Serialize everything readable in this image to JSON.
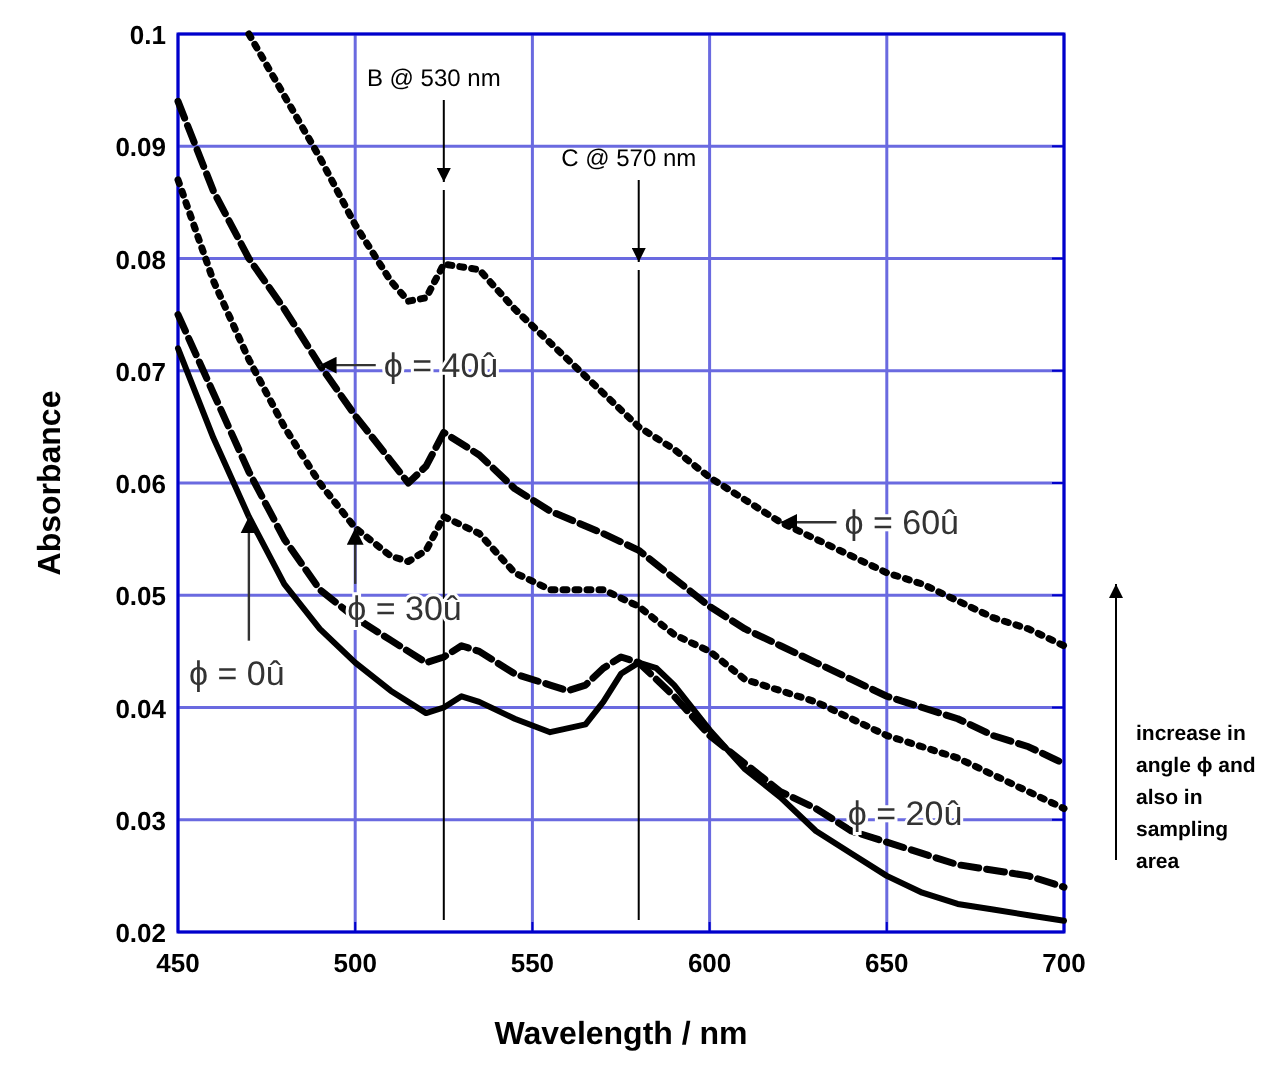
{
  "chart_data": {
    "type": "line",
    "xlabel": "Wavelength / nm",
    "ylabel": "Absorbance",
    "xlim": [
      450,
      700
    ],
    "xticks": [
      450,
      500,
      550,
      600,
      650,
      700
    ],
    "ylim": [
      0.02,
      0.1
    ],
    "yticks": [
      0.02,
      0.03,
      0.04,
      0.05,
      0.06,
      0.07,
      0.08,
      0.09,
      0.1
    ],
    "grid": true,
    "series": [
      {
        "color": "#000000",
        "line_style": "solid",
        "x": [
          450,
          460,
          470,
          480,
          490,
          500,
          510,
          520,
          525,
          530,
          535,
          545,
          555,
          565,
          570,
          575,
          580,
          585,
          590,
          600,
          610,
          620,
          630,
          640,
          650,
          660,
          670,
          680,
          690,
          700
        ],
        "values": [
          0.072,
          0.064,
          0.057,
          0.051,
          0.047,
          0.044,
          0.0415,
          0.0395,
          0.04,
          0.041,
          0.0405,
          0.039,
          0.0378,
          0.0385,
          0.0405,
          0.043,
          0.044,
          0.0435,
          0.042,
          0.038,
          0.0345,
          0.032,
          0.029,
          0.027,
          0.025,
          0.0235,
          0.0225,
          0.022,
          0.0215,
          0.021
        ]
      },
      {
        "color": "#000000",
        "line_style": "dashed",
        "x": [
          450,
          460,
          470,
          480,
          490,
          500,
          510,
          520,
          525,
          530,
          535,
          545,
          555,
          560,
          565,
          570,
          575,
          580,
          590,
          600,
          610,
          620,
          630,
          640,
          650,
          660,
          670,
          680,
          690,
          700
        ],
        "values": [
          0.075,
          0.068,
          0.061,
          0.055,
          0.0505,
          0.048,
          0.046,
          0.044,
          0.0445,
          0.0455,
          0.045,
          0.043,
          0.042,
          0.0415,
          0.042,
          0.0435,
          0.0445,
          0.044,
          0.041,
          0.0375,
          0.035,
          0.0325,
          0.031,
          0.029,
          0.028,
          0.027,
          0.026,
          0.0255,
          0.025,
          0.024
        ]
      },
      {
        "color": "#000000",
        "line_style": "dotted",
        "x": [
          450,
          460,
          470,
          480,
          490,
          500,
          510,
          515,
          520,
          525,
          535,
          545,
          555,
          565,
          570,
          580,
          590,
          600,
          610,
          620,
          630,
          640,
          650,
          660,
          670,
          680,
          690,
          700
        ],
        "values": [
          0.087,
          0.078,
          0.071,
          0.065,
          0.06,
          0.056,
          0.0535,
          0.053,
          0.054,
          0.057,
          0.0555,
          0.052,
          0.0505,
          0.0505,
          0.0505,
          0.049,
          0.0465,
          0.045,
          0.0425,
          0.0415,
          0.0405,
          0.039,
          0.0375,
          0.0365,
          0.0355,
          0.034,
          0.0325,
          0.031
        ]
      },
      {
        "color": "#000000",
        "line_style": "dashed",
        "x": [
          450,
          460,
          470,
          480,
          490,
          500,
          510,
          515,
          520,
          525,
          535,
          545,
          555,
          570,
          580,
          590,
          600,
          610,
          620,
          630,
          640,
          650,
          660,
          670,
          680,
          690,
          700
        ],
        "values": [
          0.094,
          0.086,
          0.08,
          0.0755,
          0.0705,
          0.066,
          0.062,
          0.06,
          0.0615,
          0.0645,
          0.0625,
          0.0595,
          0.0575,
          0.0555,
          0.054,
          0.0515,
          0.049,
          0.047,
          0.0455,
          0.044,
          0.0425,
          0.041,
          0.04,
          0.039,
          0.0375,
          0.0365,
          0.035
        ]
      },
      {
        "color": "#000000",
        "line_style": "dotted",
        "x": [
          470,
          480,
          490,
          500,
          510,
          515,
          520,
          525,
          535,
          545,
          555,
          565,
          575,
          580,
          590,
          600,
          610,
          620,
          630,
          640,
          650,
          660,
          670,
          680,
          690,
          700
        ],
        "values": [
          0.1,
          0.0945,
          0.089,
          0.083,
          0.078,
          0.0762,
          0.0765,
          0.0795,
          0.079,
          0.0755,
          0.0725,
          0.0695,
          0.0665,
          0.065,
          0.063,
          0.0605,
          0.0585,
          0.0565,
          0.055,
          0.0535,
          0.052,
          0.051,
          0.0495,
          0.048,
          0.047,
          0.0455
        ]
      }
    ],
    "ref_lines": [
      {
        "axis": "x",
        "value": 525,
        "label": "B @ 530 nm"
      },
      {
        "axis": "x",
        "value": 580,
        "label": "C @ 570 nm"
      }
    ],
    "annotations": [
      {
        "text": "ϕ = 40û",
        "x": 490,
        "y": 0.0705
      },
      {
        "text": "ϕ = 30û",
        "x": 500,
        "y": 0.056
      },
      {
        "text": "ϕ = 0û",
        "x": 470,
        "y": 0.057
      },
      {
        "text": "ϕ = 60û",
        "x": 620,
        "y": 0.0565
      },
      "ϕ = 20û",
      "increase in angle ϕ and also in sampling area"
    ]
  }
}
